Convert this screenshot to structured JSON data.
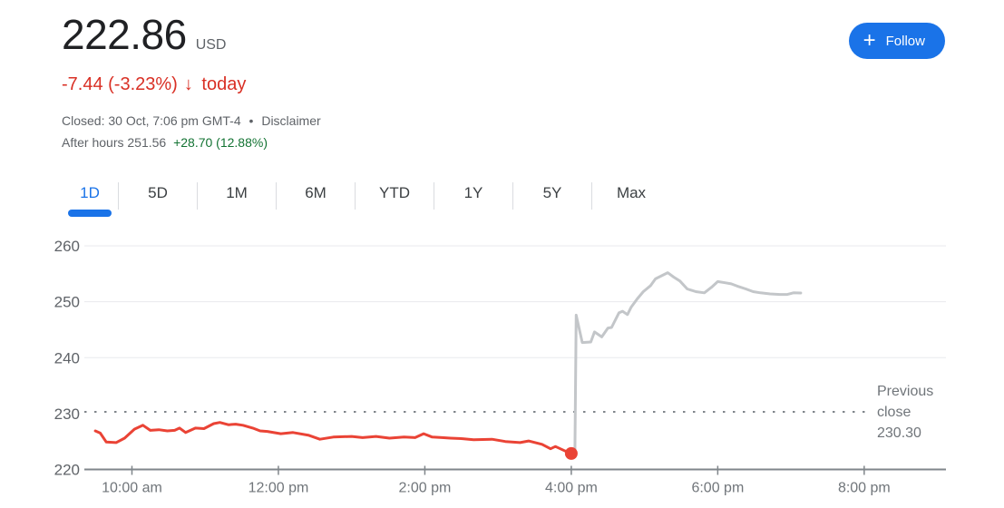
{
  "quote": {
    "price": "222.86",
    "currency": "USD",
    "change": "-7.44 (-3.23%)",
    "change_arrow": "↓",
    "change_period": "today",
    "closed_text": "Closed: 30 Oct, 7:06 pm GMT-4",
    "separator": "•",
    "disclaimer": "Disclaimer",
    "after_hours_text": "After hours 251.56",
    "after_hours_change": "+28.70 (12.88%)",
    "follow_plus": "+",
    "follow_label": "Follow"
  },
  "tabs": [
    {
      "label": "1D",
      "selected": true
    },
    {
      "label": "5D",
      "selected": false
    },
    {
      "label": "1M",
      "selected": false
    },
    {
      "label": "6M",
      "selected": false
    },
    {
      "label": "YTD",
      "selected": false
    },
    {
      "label": "1Y",
      "selected": false
    },
    {
      "label": "5Y",
      "selected": false
    },
    {
      "label": "Max",
      "selected": false
    }
  ],
  "colors": {
    "accent_blue": "#1a73e8",
    "negative_red": "#d93025",
    "line_red": "#ea4335",
    "after_hours_gray": "#c3c6c9",
    "positive_green": "#137333",
    "grid": "#e8eaed",
    "axis": "#80868b",
    "text_primary": "#202124",
    "text_secondary": "#5f6368",
    "tick_label": "#70757a",
    "divider": "#dadce0"
  },
  "chart_data": {
    "type": "line",
    "title": "1D intraday price chart",
    "x_unit": "minutes since 9:30 am",
    "x_domain": [
      -9,
      697
    ],
    "ylim": [
      220,
      260
    ],
    "yticks": [
      220,
      230,
      240,
      250,
      260
    ],
    "xticks": [
      {
        "t": 30,
        "label": "10:00 am"
      },
      {
        "t": 150,
        "label": "12:00 pm"
      },
      {
        "t": 270,
        "label": "2:00 pm"
      },
      {
        "t": 390,
        "label": "4:00 pm"
      },
      {
        "t": 510,
        "label": "6:00 pm"
      },
      {
        "t": 630,
        "label": "8:00 pm"
      }
    ],
    "previous_close": {
      "value": 230.3,
      "label_lines": [
        "Previous",
        "close",
        "230.30"
      ]
    },
    "last_trade_dot": {
      "t": 390,
      "price": 222.86
    },
    "series": [
      {
        "name": "market-hours",
        "color": "#ea4335",
        "points": [
          [
            0,
            226.9
          ],
          [
            4,
            226.5
          ],
          [
            9,
            224.9
          ],
          [
            17,
            224.8
          ],
          [
            24,
            225.6
          ],
          [
            32,
            227.2
          ],
          [
            39,
            227.9
          ],
          [
            45,
            227.0
          ],
          [
            52,
            227.1
          ],
          [
            59,
            226.9
          ],
          [
            65,
            227.0
          ],
          [
            69,
            227.4
          ],
          [
            74,
            226.6
          ],
          [
            82,
            227.4
          ],
          [
            89,
            227.3
          ],
          [
            97,
            228.2
          ],
          [
            102,
            228.4
          ],
          [
            109,
            228.0
          ],
          [
            115,
            228.1
          ],
          [
            121,
            227.9
          ],
          [
            129,
            227.4
          ],
          [
            135,
            226.9
          ],
          [
            141,
            226.8
          ],
          [
            152,
            226.4
          ],
          [
            162,
            226.6
          ],
          [
            175,
            226.1
          ],
          [
            184,
            225.4
          ],
          [
            195,
            225.8
          ],
          [
            210,
            225.9
          ],
          [
            219,
            225.7
          ],
          [
            230,
            225.9
          ],
          [
            241,
            225.6
          ],
          [
            253,
            225.8
          ],
          [
            262,
            225.7
          ],
          [
            269,
            226.4
          ],
          [
            276,
            225.8
          ],
          [
            284,
            225.7
          ],
          [
            291,
            225.6
          ],
          [
            301,
            225.5
          ],
          [
            310,
            225.3
          ],
          [
            325,
            225.4
          ],
          [
            336,
            225.0
          ],
          [
            348,
            224.8
          ],
          [
            355,
            225.1
          ],
          [
            366,
            224.5
          ],
          [
            373,
            223.7
          ],
          [
            377,
            224.1
          ],
          [
            385,
            223.3
          ],
          [
            390,
            222.86
          ]
        ]
      },
      {
        "name": "after-hours",
        "color": "#c3c6c9",
        "points": [
          [
            390,
            222.86
          ],
          [
            393,
            223.2
          ],
          [
            394,
            247.6
          ],
          [
            399,
            242.7
          ],
          [
            406,
            242.8
          ],
          [
            409,
            244.6
          ],
          [
            415,
            243.7
          ],
          [
            420,
            245.3
          ],
          [
            423,
            245.4
          ],
          [
            429,
            248.0
          ],
          [
            432,
            248.3
          ],
          [
            436,
            247.7
          ],
          [
            439,
            249.0
          ],
          [
            444,
            250.5
          ],
          [
            449,
            251.8
          ],
          [
            455,
            252.9
          ],
          [
            459,
            254.1
          ],
          [
            469,
            255.2
          ],
          [
            474,
            254.4
          ],
          [
            479,
            253.7
          ],
          [
            485,
            252.3
          ],
          [
            492,
            251.8
          ],
          [
            499,
            251.6
          ],
          [
            505,
            252.6
          ],
          [
            510,
            253.6
          ],
          [
            516,
            253.4
          ],
          [
            521,
            253.2
          ],
          [
            526,
            252.8
          ],
          [
            533,
            252.3
          ],
          [
            539,
            251.8
          ],
          [
            545,
            251.6
          ],
          [
            553,
            251.4
          ],
          [
            561,
            251.3
          ],
          [
            567,
            251.3
          ],
          [
            572,
            251.6
          ],
          [
            578,
            251.56
          ]
        ]
      }
    ]
  }
}
